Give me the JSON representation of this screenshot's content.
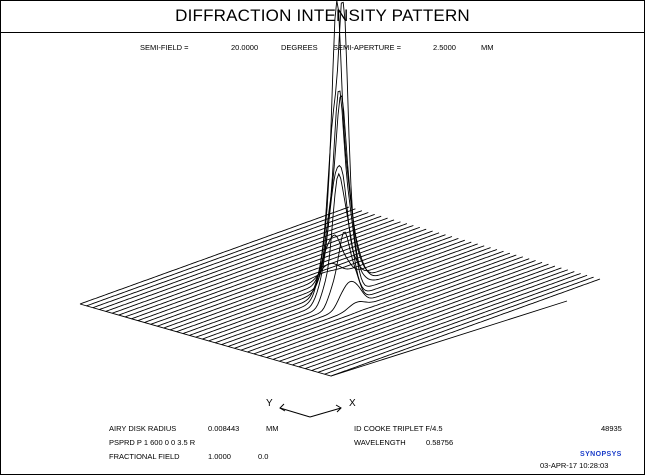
{
  "title": "DIFFRACTION INTENSITY PATTERN",
  "params": {
    "semi_field_label": "SEMI-FIELD =",
    "semi_field_value": "20.0000",
    "semi_field_unit": "DEGREES",
    "semi_aperture_label": "SEMI-APERTURE =",
    "semi_aperture_value": "2.5000",
    "semi_aperture_unit": "MM"
  },
  "axes": {
    "y_label": "Y",
    "x_label": "X"
  },
  "footer": {
    "airy_label": "AIRY DISK RADIUS",
    "airy_value": "0.008443",
    "airy_unit": "MM",
    "psprd_text": "PSPRD P 1 600 0 0 3.5 R",
    "fractional_label": "FRACTIONAL FIELD",
    "fractional_value1": "1.0000",
    "fractional_value2": "0.0",
    "lens_id": "ID COOKE TRIPLET F/4.5",
    "wavelength_label": "WAVELENGTH",
    "wavelength_value": "0.58756",
    "job_number": "48935",
    "brand": "SYNOPSYS",
    "date_time": "03-APR-17  10:28:03"
  },
  "colors": {
    "brand": "#1a3cc8",
    "line": "#000000"
  },
  "chart_data": {
    "type": "surface",
    "title": "DIFFRACTION INTENSITY PATTERN",
    "xlabel": "X",
    "ylabel": "Y",
    "grid_size": [
      40,
      40
    ],
    "peak_intensity": 1.0,
    "peaks": [
      {
        "u": 0.5,
        "v": 0.5,
        "amplitude": 1.0,
        "spread": 0.022
      },
      {
        "u": 0.46,
        "v": 0.53,
        "amplitude": 0.55,
        "spread": 0.025
      },
      {
        "u": 0.54,
        "v": 0.46,
        "amplitude": 0.45,
        "spread": 0.025
      },
      {
        "u": 0.43,
        "v": 0.57,
        "amplitude": 0.3,
        "spread": 0.03
      },
      {
        "u": 0.57,
        "v": 0.44,
        "amplitude": 0.22,
        "spread": 0.03
      }
    ]
  }
}
